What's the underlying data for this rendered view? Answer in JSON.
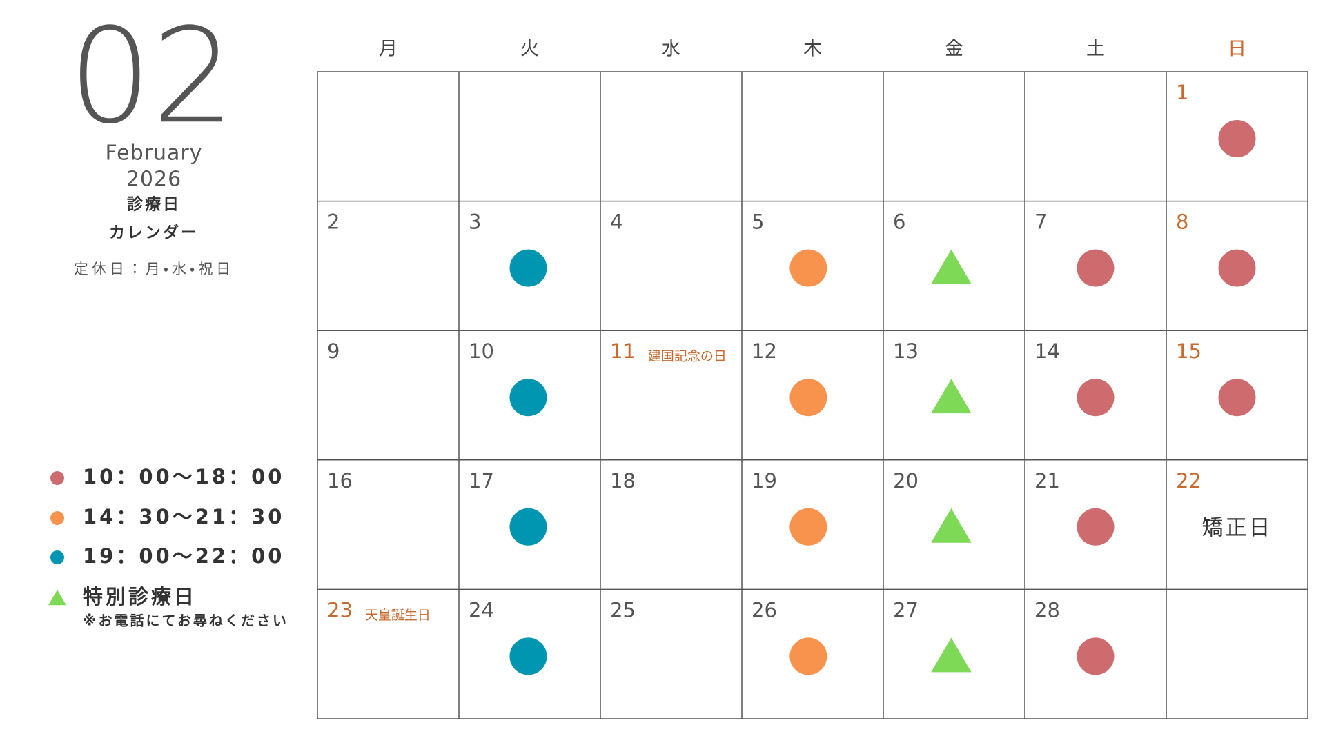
{
  "header": {
    "month": "02",
    "month_name": "February",
    "year": "2026",
    "title_1": "診療日",
    "title_2": "カレンダー",
    "closed_days": "定休日：月・水・祝日"
  },
  "legend": [
    {
      "label": "10：00〜18：00",
      "color": "#cd6b6e",
      "shape": "circle"
    },
    {
      "label": "14：30〜21：30",
      "color": "#f7934c",
      "shape": "circle"
    },
    {
      "label": "19：00〜22：00",
      "color": "#0096b2",
      "shape": "circle"
    },
    {
      "label": "特別診療日",
      "note": "※お電話にてお尋ねください",
      "color": "#7ed957",
      "shape": "triangle"
    }
  ],
  "weekdays": [
    "月",
    "火",
    "水",
    "木",
    "金",
    "土",
    "日"
  ],
  "weeks": [
    [
      null,
      null,
      null,
      null,
      null,
      null,
      {
        "day": "1",
        "holiday": true,
        "mark": 0
      }
    ],
    [
      {
        "day": "2"
      },
      {
        "day": "3",
        "mark": 2
      },
      {
        "day": "4"
      },
      {
        "day": "5",
        "mark": 1
      },
      {
        "day": "6",
        "mark": 3
      },
      {
        "day": "7",
        "mark": 0
      },
      {
        "day": "8",
        "holiday": true,
        "mark": 0
      }
    ],
    [
      {
        "day": "9"
      },
      {
        "day": "10",
        "mark": 2
      },
      {
        "day": "11",
        "holiday": true,
        "holiday_name": "建国記念の日"
      },
      {
        "day": "12",
        "mark": 1
      },
      {
        "day": "13",
        "mark": 3
      },
      {
        "day": "14",
        "mark": 0
      },
      {
        "day": "15",
        "holiday": true,
        "mark": 0
      }
    ],
    [
      {
        "day": "16"
      },
      {
        "day": "17",
        "mark": 2
      },
      {
        "day": "18"
      },
      {
        "day": "19",
        "mark": 1
      },
      {
        "day": "20",
        "mark": 3
      },
      {
        "day": "21",
        "mark": 0
      },
      {
        "day": "22",
        "holiday": true,
        "note": "矯正日"
      }
    ],
    [
      {
        "day": "23",
        "holiday": true,
        "holiday_name": "天皇誕生日"
      },
      {
        "day": "24",
        "mark": 2
      },
      {
        "day": "25"
      },
      {
        "day": "26",
        "mark": 1
      },
      {
        "day": "27",
        "mark": 3
      },
      {
        "day": "28",
        "mark": 0
      },
      null
    ]
  ]
}
